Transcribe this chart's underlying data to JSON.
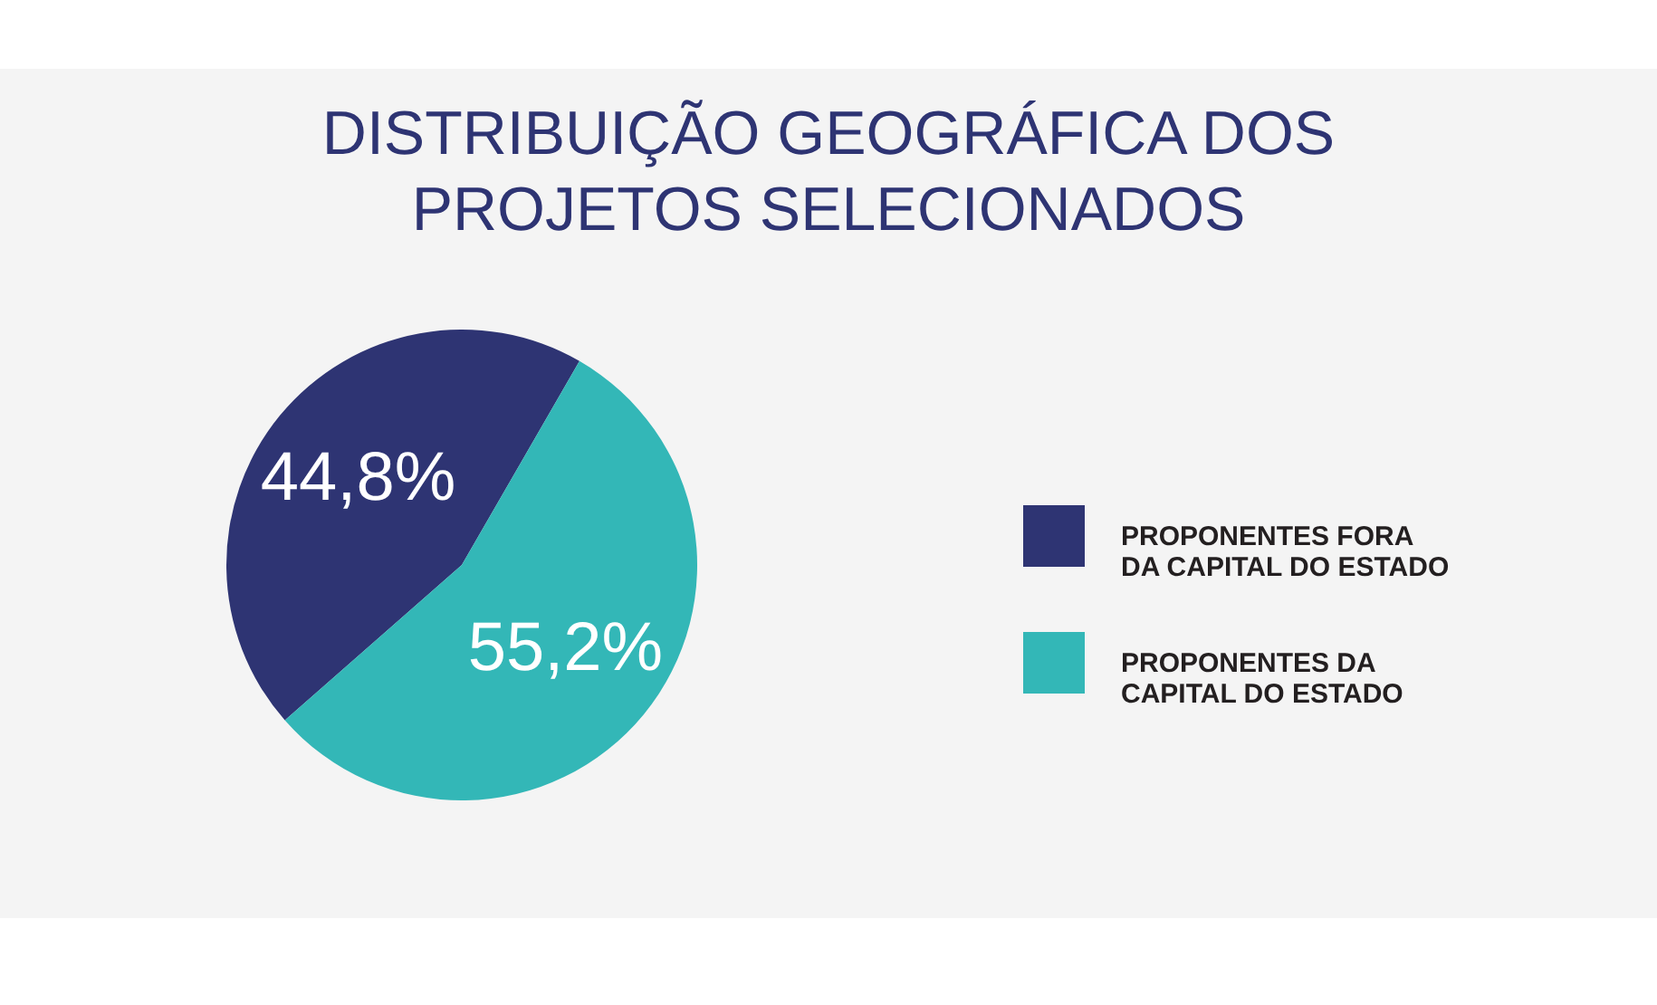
{
  "chart_data": {
    "type": "pie",
    "title": "DISTRIBUIÇÃO GEOGRÁFICA DOS PROJETOS SELECIONADOS",
    "categories": [
      "PROPONENTES FORA DA CAPITAL DO ESTADO",
      "PROPONENTES DA CAPITAL DO ESTADO"
    ],
    "values": [
      44.8,
      55.2
    ],
    "colors": [
      "#2e3473",
      "#33b7b7"
    ],
    "value_labels": [
      "44,8%",
      "55,2%"
    ],
    "legend": "right"
  }
}
